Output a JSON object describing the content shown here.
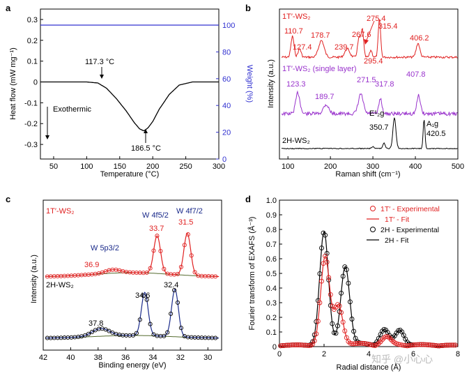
{
  "chart_data": [
    {
      "panel": "a",
      "type": "line",
      "xlabel": "Temperature (°C)",
      "ylabel": "Heat flow (mW mg⁻¹)",
      "y2label": "Weight (%)",
      "xlim": [
        30,
        300
      ],
      "ylim": [
        -0.37,
        0.35
      ],
      "y2lim": [
        0,
        112
      ],
      "xticks": [
        "50",
        "100",
        "150",
        "200",
        "250",
        "300"
      ],
      "yticks": [
        "0.3",
        "0.2",
        "0.1",
        "0",
        "-0.1",
        "-0.2",
        "-0.3"
      ],
      "y2ticks": [
        "100",
        "80",
        "60",
        "40",
        "20",
        "0"
      ],
      "series": [
        {
          "name": "Heat flow",
          "color": "#000000",
          "x": [
            30,
            100,
            117,
            130,
            145,
            160,
            172,
            180,
            186.5,
            193,
            200,
            210,
            225,
            240,
            260,
            300
          ],
          "y": [
            0,
            0,
            -0.005,
            -0.03,
            -0.08,
            -0.14,
            -0.195,
            -0.225,
            -0.235,
            -0.22,
            -0.19,
            -0.13,
            -0.06,
            -0.015,
            0,
            0
          ]
        },
        {
          "name": "Weight",
          "color": "#3030d0",
          "axis": "right",
          "x": [
            30,
            300
          ],
          "y": [
            100,
            100
          ]
        }
      ],
      "annotations": [
        "117.3 °C",
        "186.5 °C",
        "Exothermic"
      ]
    },
    {
      "panel": "b",
      "type": "line",
      "xlabel": "Raman shift (cm⁻¹)",
      "ylabel": "Intensity (a.u.)",
      "xlim": [
        80,
        500
      ],
      "xticks": [
        "100",
        "200",
        "300",
        "400",
        "500"
      ],
      "series": [
        {
          "name": "1T′-WS₂",
          "color": "#e02020",
          "peaks": [
            110.7,
            127.4,
            178.7,
            239.7,
            267.6,
            275.4,
            295.4,
            315.4,
            406.2
          ]
        },
        {
          "name": "1T′-WS₂ (single layer)",
          "color": "#9932cc",
          "peaks": [
            123.3,
            189.7,
            271.5,
            317.8,
            407.8
          ]
        },
        {
          "name": "2H-WS₂",
          "color": "#000000",
          "peaks": [
            350.7,
            420.5
          ]
        }
      ],
      "labels": {
        "red": [
          "110.7",
          "127.4",
          "178.7",
          "239.7",
          "267.6",
          "275.4",
          "295.4",
          "315.4",
          "406.2"
        ],
        "purple": [
          "123.3",
          "189.7",
          "271.5",
          "317.8",
          "407.8"
        ],
        "black": [
          "350.7",
          "420.5"
        ],
        "modes": [
          "E¹₂g",
          "A₁g"
        ]
      }
    },
    {
      "panel": "c",
      "type": "line",
      "xlabel": "Binding energy (eV)",
      "ylabel": "Intensity (a.u.)",
      "xlim": [
        42,
        29
      ],
      "xticks": [
        "42",
        "40",
        "38",
        "36",
        "34",
        "32",
        "30"
      ],
      "series": [
        {
          "name": "1T′-WS₂",
          "color": "#e02020",
          "peaks": [
            36.9,
            33.7,
            31.5
          ]
        },
        {
          "name": "2H-WS₂",
          "color": "#000000",
          "peaks": [
            37.8,
            34.6,
            32.4
          ]
        }
      ],
      "labels": {
        "red": [
          "36.9",
          "33.7",
          "31.5"
        ],
        "black": [
          "37.8",
          "34.6",
          "32.4"
        ],
        "orbitals": [
          "W 5p3/2",
          "W 4f5/2",
          "W 4f7/2"
        ]
      }
    },
    {
      "panel": "d",
      "type": "line",
      "xlabel": "Radial distance (Å)",
      "ylabel": "Fourier transform of EXAFS (Å⁻³)",
      "xlim": [
        0,
        8
      ],
      "ylim": [
        0,
        1.0
      ],
      "xticks": [
        "0",
        "2",
        "4",
        "6",
        "8"
      ],
      "yticks": [
        "0",
        "0.1",
        "0.2",
        "0.3",
        "0.4",
        "0.5",
        "0.6",
        "0.7",
        "0.8",
        "0.9",
        "1.0"
      ],
      "series": [
        {
          "name": "1T′ - Experimental",
          "color": "#e02020",
          "marker": "circle"
        },
        {
          "name": "1T′ - Fit",
          "color": "#e02020"
        },
        {
          "name": "2H - Experimental",
          "color": "#000000",
          "marker": "circle"
        },
        {
          "name": "2H - Fit",
          "color": "#000000"
        }
      ],
      "peaks": {
        "1T": [
          [
            2.05,
            0.6
          ],
          [
            2.65,
            0.27
          ],
          [
            4.8,
            0.05
          ]
        ],
        "2H": [
          [
            2.0,
            0.77
          ],
          [
            2.95,
            0.54
          ],
          [
            4.7,
            0.1
          ],
          [
            5.4,
            0.1
          ]
        ]
      }
    }
  ],
  "panel_labels": [
    "a",
    "b",
    "c",
    "d"
  ],
  "text": {
    "a_peak1": "117.3 °C",
    "a_peak2": "186.5 °C",
    "a_exo": "Exothermic",
    "b_lbl_red": "1T′-WS₂",
    "b_lbl_purple": "1T′-WS₂ (single layer)",
    "b_lbl_black": "2H-WS₂",
    "b_e2g": "E¹₂g",
    "b_a1g": "A₁g",
    "c_lbl_red": "1T′-WS₂",
    "c_lbl_black": "2H-WS₂",
    "c_w5p": "W 5p3/2",
    "c_w4f52": "W 4f5/2",
    "c_w4f72": "W 4f7/2",
    "watermark": "知乎 @小心心"
  },
  "colors": {
    "red": "#e02020",
    "purple": "#9932cc",
    "blue": "#3030d0",
    "navy": "#1a2a8a",
    "black": "#000000",
    "green": "#2e8b57"
  }
}
